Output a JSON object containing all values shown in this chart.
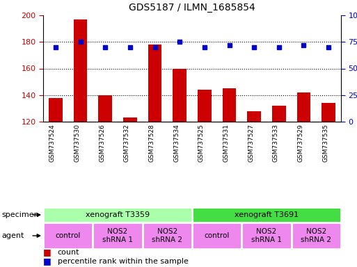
{
  "title": "GDS5187 / ILMN_1685854",
  "samples": [
    "GSM737524",
    "GSM737530",
    "GSM737526",
    "GSM737532",
    "GSM737528",
    "GSM737534",
    "GSM737525",
    "GSM737531",
    "GSM737527",
    "GSM737533",
    "GSM737529",
    "GSM737535"
  ],
  "counts": [
    138,
    197,
    140,
    123,
    178,
    160,
    144,
    145,
    128,
    132,
    142,
    134
  ],
  "percentiles": [
    70,
    75,
    70,
    70,
    70,
    75,
    70,
    72,
    70,
    70,
    72,
    70
  ],
  "ylim_left": [
    120,
    200
  ],
  "ylim_right": [
    0,
    100
  ],
  "yticks_left": [
    120,
    140,
    160,
    180,
    200
  ],
  "yticks_right": [
    0,
    25,
    50,
    75,
    100
  ],
  "bar_color": "#cc0000",
  "dot_color": "#0000cc",
  "specimen_color_light": "#aaffaa",
  "specimen_color_dark": "#44ee44",
  "specimen_labels": [
    "xenograft T3359",
    "xenograft T3691"
  ],
  "specimen_spans": [
    [
      0,
      6
    ],
    [
      6,
      12
    ]
  ],
  "specimen_colors": [
    "#aaffaa",
    "#44dd44"
  ],
  "agent_groups": [
    {
      "label": "control",
      "span": [
        0,
        2
      ]
    },
    {
      "label": "NOS2\nshRNA 1",
      "span": [
        2,
        4
      ]
    },
    {
      "label": "NOS2\nshRNA 2",
      "span": [
        4,
        6
      ]
    },
    {
      "label": "control",
      "span": [
        6,
        8
      ]
    },
    {
      "label": "NOS2\nshRNA 1",
      "span": [
        8,
        10
      ]
    },
    {
      "label": "NOS2\nshRNA 2",
      "span": [
        10,
        12
      ]
    }
  ],
  "agent_color": "#ee88ee",
  "bar_color_legend": "#cc0000",
  "dot_color_legend": "#0000cc"
}
